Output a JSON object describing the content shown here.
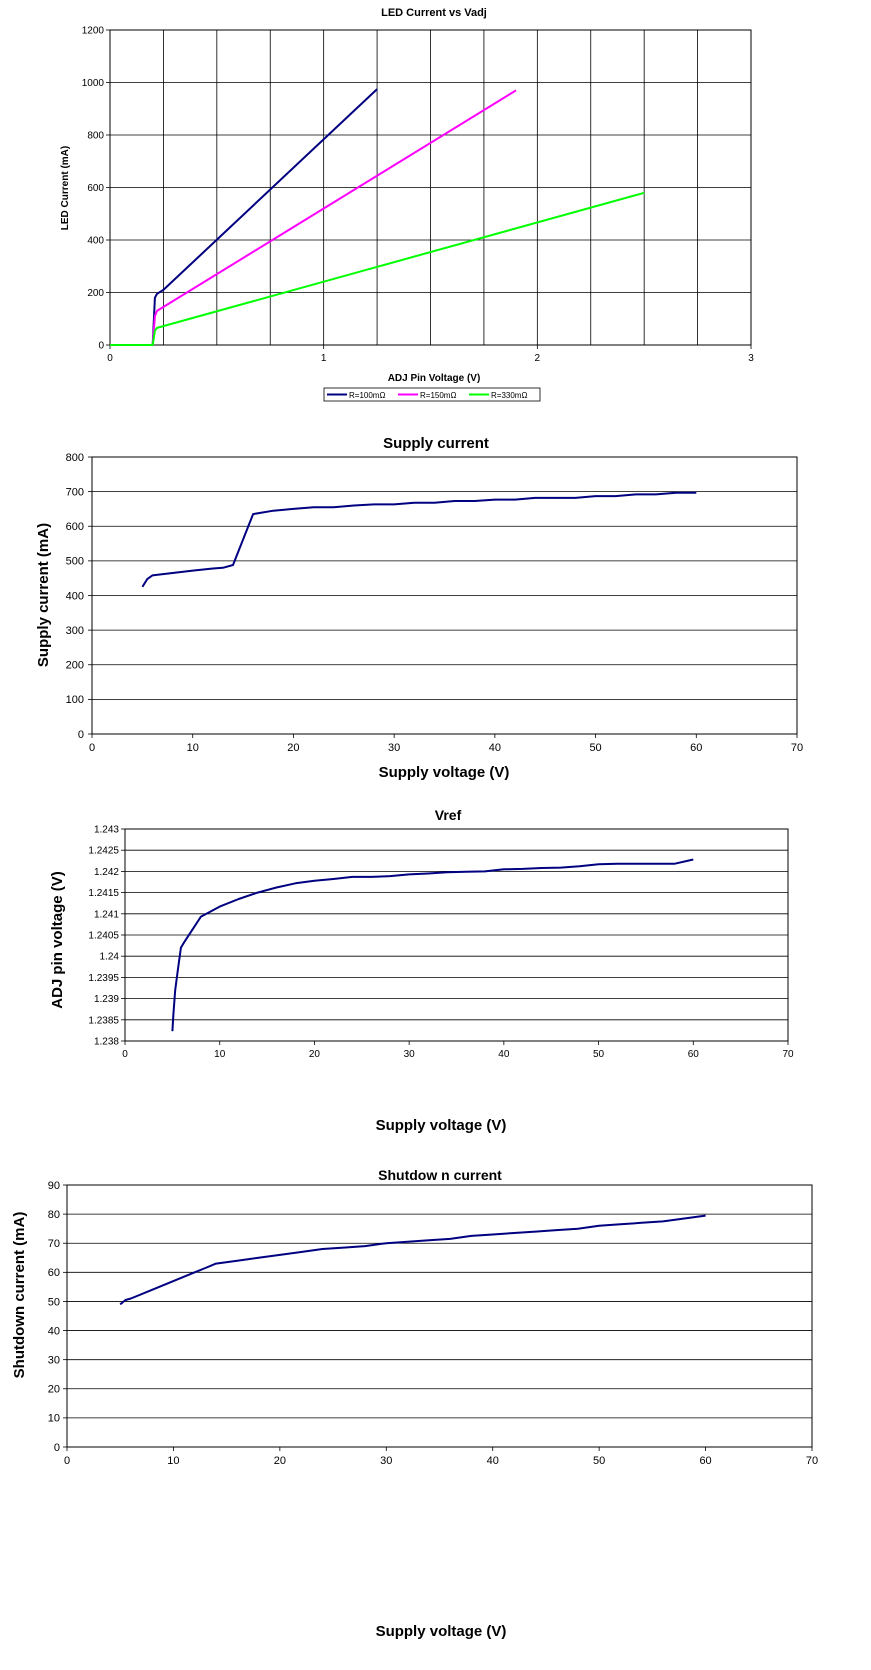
{
  "chart_data": [
    {
      "type": "line",
      "title": "LED Current vs Vadj",
      "xlabel": "ADJ Pin Voltage (V)",
      "ylabel": "LED Current (mA)",
      "xlim": [
        0,
        3
      ],
      "ylim": [
        0,
        1200
      ],
      "x_ticks": [
        "0",
        "1",
        "2",
        "3"
      ],
      "y_ticks": [
        "0",
        "200",
        "400",
        "600",
        "800",
        "1000",
        "1200"
      ],
      "grid": "major x and y, plus vertical minor lines at 0.25 V",
      "legend_position": "bottom",
      "series": [
        {
          "name": "R=100mΩ",
          "color": "#000080",
          "x": [
            0,
            0.2,
            0.21,
            0.22,
            0.25,
            1.25
          ],
          "y": [
            0,
            0,
            180,
            195,
            210,
            975
          ]
        },
        {
          "name": "R=150mΩ",
          "color": "#ff00ff",
          "x": [
            0,
            0.2,
            0.21,
            0.22,
            1.9
          ],
          "y": [
            0,
            0,
            110,
            130,
            970
          ]
        },
        {
          "name": "R=330mΩ",
          "color": "#00ff00",
          "x": [
            0,
            0.2,
            0.21,
            0.22,
            2.5
          ],
          "y": [
            0,
            0,
            55,
            65,
            580
          ]
        }
      ]
    },
    {
      "type": "line",
      "title": "Supply current",
      "xlabel": "Supply voltage (V)",
      "ylabel": "Supply current (mA)",
      "xlim": [
        0,
        70
      ],
      "ylim": [
        0,
        800
      ],
      "x_ticks": [
        "0",
        "10",
        "20",
        "30",
        "40",
        "50",
        "60",
        "70"
      ],
      "y_ticks": [
        "0",
        "100",
        "200",
        "300",
        "400",
        "500",
        "600",
        "700",
        "800"
      ],
      "grid": "horizontal major",
      "series": [
        {
          "color": "#000080",
          "x": [
            5,
            5.5,
            6,
            8,
            10,
            12,
            13,
            14,
            16,
            18,
            20,
            22,
            24,
            26,
            28,
            30,
            32,
            34,
            36,
            38,
            40,
            42,
            44,
            46,
            48,
            50,
            52,
            54,
            56,
            58,
            60
          ],
          "y": [
            425,
            448,
            458,
            465,
            472,
            478,
            480,
            488,
            635,
            645,
            650,
            655,
            655,
            660,
            663,
            663,
            668,
            668,
            673,
            673,
            677,
            677,
            682,
            682,
            682,
            687,
            687,
            692,
            692,
            697,
            697
          ]
        }
      ]
    },
    {
      "type": "line",
      "title": "Vref",
      "xlabel": "Supply voltage (V)",
      "ylabel": "ADJ pin voltage (V)",
      "xlim": [
        0,
        70
      ],
      "ylim": [
        1.238,
        1.243
      ],
      "x_ticks": [
        "0",
        "10",
        "20",
        "30",
        "40",
        "50",
        "60",
        "70"
      ],
      "y_ticks": [
        "1.238",
        "1.2385",
        "1.239",
        "1.2395",
        "1.24",
        "1.2405",
        "1.241",
        "1.2415",
        "1.242",
        "1.2425",
        "1.243"
      ],
      "grid": "horizontal major",
      "series": [
        {
          "color": "#000080",
          "x": [
            5,
            5.1,
            5.3,
            5.6,
            5.9,
            6.3,
            8,
            10,
            12,
            14,
            16,
            18,
            20,
            22,
            24,
            26,
            28,
            30,
            32,
            34,
            36,
            38,
            40,
            42,
            44,
            46,
            48,
            50,
            52,
            54,
            56,
            58,
            60
          ],
          "y": [
            1.23823,
            1.2386,
            1.2392,
            1.2397,
            1.2402,
            1.24035,
            1.24093,
            1.24117,
            1.24135,
            1.2415,
            1.24162,
            1.24172,
            1.24178,
            1.24182,
            1.24187,
            1.24187,
            1.24189,
            1.24193,
            1.24195,
            1.24198,
            1.24199,
            1.242,
            1.24205,
            1.24206,
            1.24208,
            1.24209,
            1.24212,
            1.24217,
            1.24218,
            1.24218,
            1.24218,
            1.24218,
            1.24228
          ]
        }
      ]
    },
    {
      "type": "line",
      "title": "Shutdow n current",
      "xlabel": "Supply voltage (V)",
      "ylabel": "Shutdown current (mA)",
      "xlim": [
        0,
        70
      ],
      "ylim": [
        0,
        90
      ],
      "x_ticks": [
        "0",
        "10",
        "20",
        "30",
        "40",
        "50",
        "60",
        "70"
      ],
      "y_ticks": [
        "0",
        "10",
        "20",
        "30",
        "40",
        "50",
        "60",
        "70",
        "80",
        "90"
      ],
      "grid": "horizontal major",
      "series": [
        {
          "color": "#000080",
          "x": [
            5,
            5.5,
            6,
            8,
            10,
            12,
            13,
            14,
            16,
            18,
            20,
            22,
            24,
            26,
            28,
            30,
            32,
            34,
            36,
            38,
            40,
            42,
            44,
            46,
            48,
            50,
            52,
            54,
            56,
            58,
            60
          ],
          "y": [
            49,
            50.5,
            51,
            54,
            57,
            60,
            61.5,
            63,
            64,
            65,
            66,
            67,
            68,
            68.5,
            69,
            70,
            70.5,
            71,
            71.5,
            72.5,
            73,
            73.5,
            74,
            74.5,
            75,
            76,
            76.5,
            77,
            77.5,
            78.5,
            79.5
          ]
        }
      ]
    }
  ]
}
